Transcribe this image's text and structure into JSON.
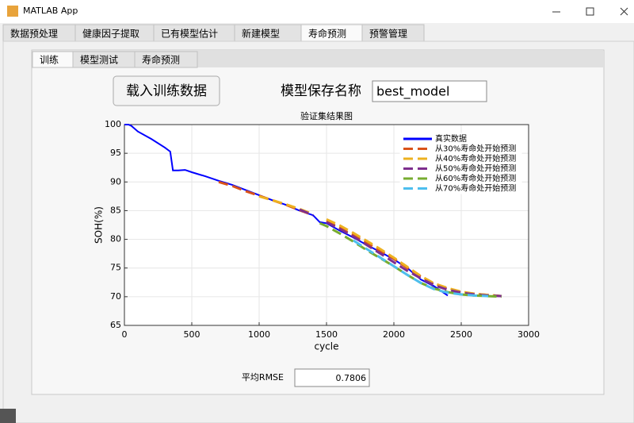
{
  "window": {
    "title": "MATLAB App"
  },
  "tabs": [
    "数据预处理",
    "健康因子提取",
    "已有模型估计",
    "新建模型",
    "寿命预测",
    "预警管理"
  ],
  "subtabs": [
    "训练",
    "模型测试",
    "寿命预测"
  ],
  "load_button": "载入训练数据",
  "model_name_label": "模型保存名称",
  "model_name_value": "best_model",
  "rmse_label": "平均RMSE",
  "rmse_value": 0.7806,
  "chart_data": {
    "type": "line",
    "title": "验证集结果图",
    "x_label": "cycle",
    "y_label": "SOH(%)",
    "xlim": [
      0,
      3000
    ],
    "ylim": [
      65,
      100
    ],
    "xticks": [
      0,
      500,
      1000,
      1500,
      2000,
      2500,
      3000
    ],
    "yticks": [
      65,
      70,
      75,
      80,
      85,
      90,
      95,
      100
    ],
    "grid": true,
    "legend": "top-right",
    "x": [
      0,
      30,
      50,
      100,
      200,
      300,
      340,
      360,
      400,
      450,
      500,
      600,
      700,
      800,
      900,
      1000,
      1100,
      1200,
      1300,
      1400,
      1450,
      1500,
      1600,
      1700,
      1800,
      1900,
      2000,
      2100,
      2200,
      2300,
      2400,
      2500,
      2600,
      2700,
      2800
    ],
    "series": [
      {
        "name": "真实数据",
        "color": "#0000ff",
        "line_style": "solid",
        "values": [
          100,
          100,
          99.8,
          98.8,
          97.5,
          96,
          95.3,
          92,
          92,
          92.1,
          91.7,
          91,
          90.2,
          89.5,
          88.6,
          87.7,
          86.8,
          86,
          85,
          84.2,
          83,
          82.8,
          81.5,
          80.3,
          79,
          77.8,
          76.5,
          75,
          73,
          71.8,
          70.2,
          null,
          null,
          null,
          null
        ]
      },
      {
        "name": "从30%寿命处开始预测",
        "color": "#d95319",
        "line_style": "dashed",
        "values": [
          null,
          null,
          null,
          null,
          null,
          null,
          null,
          null,
          null,
          null,
          null,
          null,
          90,
          89.3,
          88.4,
          87.6,
          86.8,
          86,
          85.1,
          84.2,
          null,
          83.2,
          82,
          80.7,
          79.4,
          78,
          76.6,
          75,
          73.5,
          72.2,
          71.4,
          70.8,
          70.5,
          70.3,
          70.1
        ]
      },
      {
        "name": "从40%寿命处开始预测",
        "color": "#edb120",
        "line_style": "dashed",
        "values": [
          null,
          null,
          null,
          null,
          null,
          null,
          null,
          null,
          null,
          null,
          null,
          null,
          null,
          null,
          null,
          87.5,
          86.8,
          86.1,
          85.3,
          84.4,
          null,
          83.5,
          82.4,
          81.1,
          79.7,
          78.3,
          76.8,
          75.2,
          73.6,
          72.3,
          71.5,
          70.9,
          70.5,
          70.3,
          70.1
        ]
      },
      {
        "name": "从50%寿命处开始预测",
        "color": "#7e2f8e",
        "line_style": "dashed",
        "values": [
          null,
          null,
          null,
          null,
          null,
          null,
          null,
          null,
          null,
          null,
          null,
          null,
          null,
          null,
          null,
          null,
          null,
          null,
          85.2,
          84.2,
          null,
          83,
          81.8,
          80.5,
          79,
          77.5,
          76,
          74.5,
          73.2,
          72,
          71.2,
          70.7,
          70.4,
          70.2,
          70.1
        ]
      },
      {
        "name": "从60%寿命处开始预测",
        "color": "#77ac30",
        "line_style": "dashed",
        "values": [
          null,
          null,
          null,
          null,
          null,
          null,
          null,
          null,
          null,
          null,
          null,
          null,
          null,
          null,
          null,
          null,
          null,
          null,
          null,
          null,
          82.8,
          82.3,
          81,
          79.6,
          78.1,
          76.7,
          75.3,
          73.8,
          72.4,
          71.4,
          70.8,
          70.4,
          70.2,
          70.1,
          70
        ]
      },
      {
        "name": "从70%寿命处开始预测",
        "color": "#4dbeee",
        "line_style": "dashed",
        "values": [
          null,
          null,
          null,
          null,
          null,
          null,
          null,
          null,
          null,
          null,
          null,
          null,
          null,
          null,
          null,
          null,
          null,
          null,
          null,
          null,
          null,
          null,
          null,
          79.8,
          78.3,
          76.8,
          75.3,
          73.8,
          72.4,
          71.3,
          70.7,
          70.4,
          70.2,
          70.1,
          null
        ]
      }
    ]
  }
}
